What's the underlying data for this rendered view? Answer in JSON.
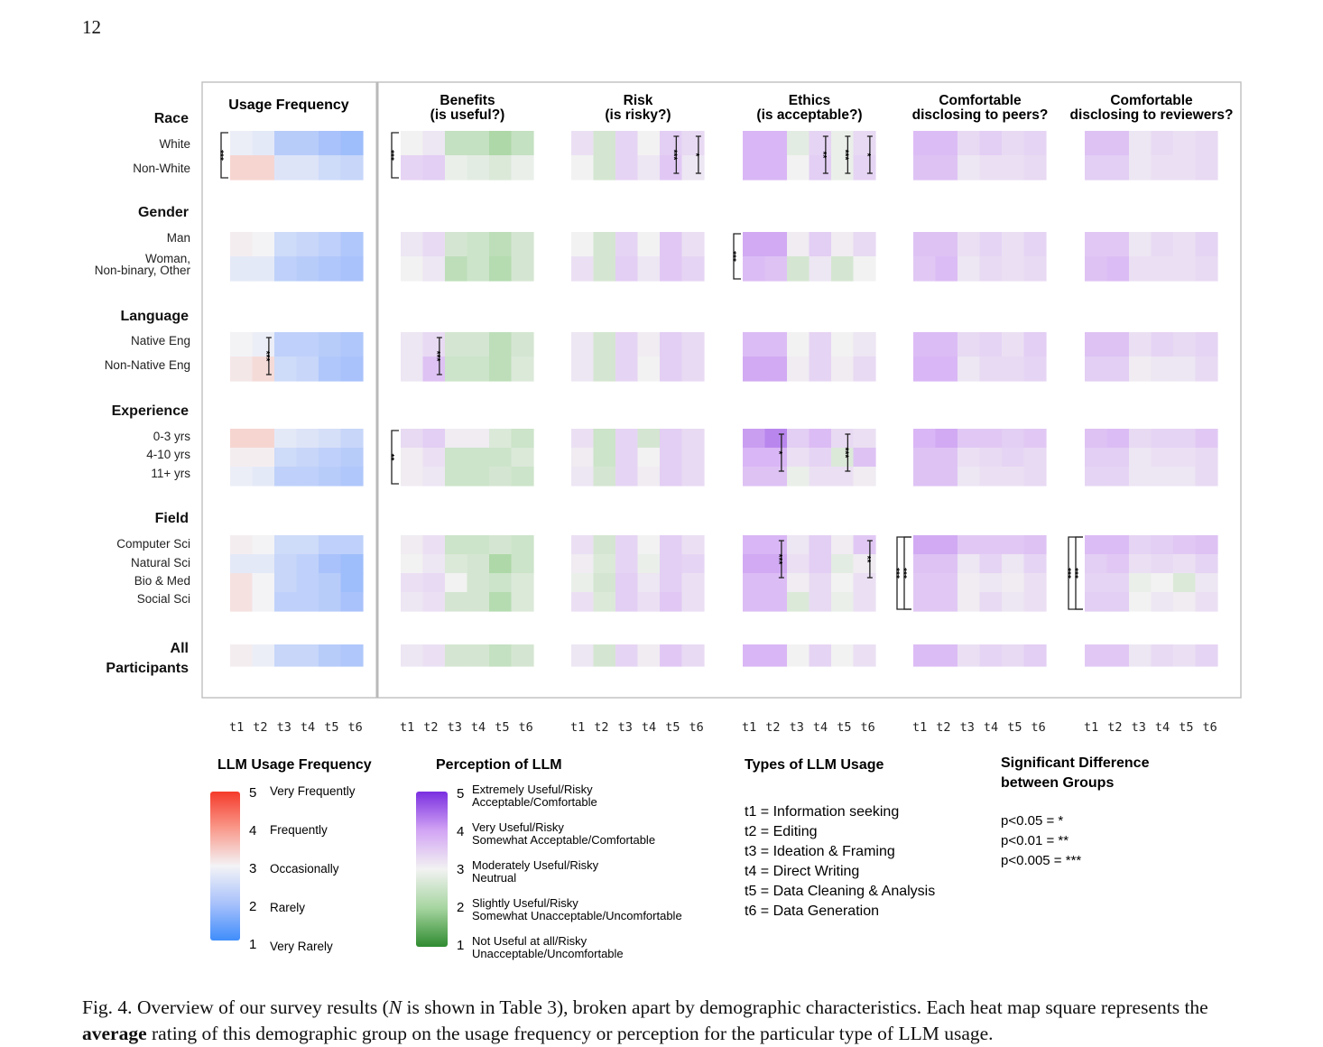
{
  "page_number": "12",
  "caption": {
    "fig_label": "Fig. 4.",
    "text_1": " Overview of our survey results (",
    "n_symbol": "N",
    "text_2": " is shown in Table 3), broken apart by demographic characteristics. Each heat map square represents the ",
    "bold_word": "average",
    "text_3": " rating of this demographic group on the usage frequency or perception for the particular type of LLM usage."
  },
  "chart_data": {
    "type": "heatmap",
    "panels": [
      {
        "id": "usage",
        "title": [
          "Usage Frequency"
        ],
        "scale": "usage"
      },
      {
        "id": "benefits",
        "title": [
          "Benefits",
          "(is useful?)"
        ],
        "scale": "perception"
      },
      {
        "id": "risk",
        "title": [
          "Risk",
          "(is risky?)"
        ],
        "scale": "perception"
      },
      {
        "id": "ethics",
        "title": [
          "Ethics",
          "(is acceptable?)"
        ],
        "scale": "perception"
      },
      {
        "id": "peers",
        "title": [
          "Comfortable",
          "disclosing to peers?"
        ],
        "scale": "perception"
      },
      {
        "id": "reviewers",
        "title": [
          "Comfortable",
          "disclosing to reviewers?"
        ],
        "scale": "perception"
      }
    ],
    "x_tick_labels": [
      "t1",
      "t2",
      "t3",
      "t4",
      "t5",
      "t6"
    ],
    "groups": [
      {
        "label": "Race",
        "rows": [
          "White",
          "Non-White"
        ]
      },
      {
        "label": "Gender",
        "rows": [
          "Man",
          "Woman,\nNon-binary, Other"
        ]
      },
      {
        "label": "Language",
        "rows": [
          "Native Eng",
          "Non-Native Eng"
        ]
      },
      {
        "label": "Experience",
        "rows": [
          "0-3 yrs",
          "4-10 yrs",
          "11+ yrs"
        ]
      },
      {
        "label": "Field",
        "rows": [
          "Computer Sci",
          "Natural Sci",
          "Bio & Med",
          "Social Sci"
        ]
      },
      {
        "label": "All\nParticipants",
        "rows": [
          ""
        ]
      }
    ],
    "values": {
      "usage": [
        [
          [
            2.9,
            2.8,
            2.2,
            2.2,
            2.0,
            1.9
          ],
          [
            3.5,
            3.5,
            2.7,
            2.7,
            2.5,
            2.4
          ]
        ],
        [
          [
            3.1,
            3.0,
            2.5,
            2.4,
            2.3,
            2.1
          ],
          [
            2.8,
            2.8,
            2.3,
            2.2,
            2.1,
            2.0
          ]
        ],
        [
          [
            3.0,
            2.9,
            2.3,
            2.3,
            2.2,
            2.1
          ],
          [
            3.2,
            3.4,
            2.5,
            2.4,
            2.1,
            2.0
          ]
        ],
        [
          [
            3.5,
            3.5,
            2.8,
            2.7,
            2.6,
            2.4
          ],
          [
            3.1,
            3.1,
            2.5,
            2.4,
            2.3,
            2.2
          ],
          [
            2.9,
            2.8,
            2.3,
            2.3,
            2.2,
            2.1
          ]
        ],
        [
          [
            3.1,
            3.0,
            2.5,
            2.5,
            2.3,
            2.3
          ],
          [
            2.8,
            2.8,
            2.4,
            2.3,
            2.0,
            1.9
          ],
          [
            3.3,
            3.0,
            2.4,
            2.3,
            2.2,
            1.9
          ],
          [
            3.3,
            3.0,
            2.3,
            2.3,
            2.2,
            2.0
          ]
        ],
        [
          [
            3.1,
            2.9,
            2.4,
            2.4,
            2.2,
            2.1
          ]
        ]
      ],
      "benefits": [
        [
          [
            3.0,
            3.2,
            2.4,
            2.4,
            2.1,
            2.4
          ],
          [
            3.5,
            3.6,
            2.9,
            2.8,
            2.7,
            2.9
          ]
        ],
        [
          [
            3.2,
            3.4,
            2.6,
            2.5,
            2.3,
            2.6
          ],
          [
            3.0,
            3.2,
            2.3,
            2.5,
            2.2,
            2.6
          ]
        ],
        [
          [
            3.2,
            3.4,
            2.6,
            2.6,
            2.3,
            2.6
          ],
          [
            3.2,
            3.8,
            2.5,
            2.5,
            2.3,
            2.7
          ]
        ],
        [
          [
            3.4,
            3.6,
            3.1,
            3.1,
            2.7,
            2.5
          ],
          [
            3.1,
            3.3,
            2.5,
            2.5,
            2.5,
            2.7
          ],
          [
            3.1,
            3.2,
            2.5,
            2.5,
            2.6,
            2.5
          ]
        ],
        [
          [
            3.1,
            3.3,
            2.5,
            2.5,
            2.6,
            2.5
          ],
          [
            3.0,
            3.2,
            2.7,
            2.6,
            2.1,
            2.5
          ],
          [
            3.3,
            3.4,
            3.0,
            2.6,
            2.5,
            2.7
          ],
          [
            3.2,
            3.3,
            2.6,
            2.6,
            2.2,
            2.7
          ]
        ],
        [
          [
            3.2,
            3.3,
            2.6,
            2.6,
            2.4,
            2.6
          ]
        ]
      ],
      "risk": [
        [
          [
            3.3,
            2.6,
            3.5,
            3.0,
            3.6,
            3.4
          ],
          [
            3.0,
            2.6,
            3.5,
            3.2,
            3.7,
            3.2
          ]
        ],
        [
          [
            3.0,
            2.6,
            3.5,
            3.0,
            3.7,
            3.3
          ],
          [
            3.3,
            2.6,
            3.6,
            3.2,
            3.7,
            3.5
          ]
        ],
        [
          [
            3.2,
            2.6,
            3.5,
            3.1,
            3.6,
            3.4
          ],
          [
            3.2,
            2.6,
            3.5,
            3.0,
            3.6,
            3.4
          ]
        ],
        [
          [
            3.3,
            2.5,
            3.5,
            2.6,
            3.6,
            3.4
          ],
          [
            3.1,
            2.5,
            3.5,
            3.0,
            3.6,
            3.4
          ],
          [
            3.2,
            2.6,
            3.5,
            3.1,
            3.6,
            3.4
          ]
        ],
        [
          [
            3.3,
            2.6,
            3.5,
            3.0,
            3.6,
            3.3
          ],
          [
            3.1,
            2.7,
            3.5,
            2.9,
            3.6,
            3.5
          ],
          [
            2.9,
            2.6,
            3.6,
            3.2,
            3.6,
            3.3
          ],
          [
            3.3,
            2.7,
            3.6,
            3.3,
            3.7,
            3.3
          ]
        ],
        [
          [
            3.2,
            2.6,
            3.5,
            3.1,
            3.7,
            3.4
          ]
        ]
      ],
      "ethics": [
        [
          [
            4.0,
            4.0,
            2.8,
            3.5,
            2.9,
            3.4
          ],
          [
            4.0,
            4.0,
            3.0,
            3.6,
            2.9,
            3.5
          ]
        ],
        [
          [
            4.1,
            4.1,
            3.1,
            3.6,
            3.1,
            3.4
          ],
          [
            3.9,
            3.8,
            2.6,
            3.2,
            2.6,
            3.0
          ]
        ],
        [
          [
            3.9,
            3.9,
            3.0,
            3.5,
            3.0,
            3.2
          ],
          [
            4.1,
            4.1,
            3.1,
            3.5,
            3.1,
            3.4
          ]
        ],
        [
          [
            4.2,
            4.4,
            3.6,
            3.9,
            3.4,
            3.3
          ],
          [
            4.0,
            4.0,
            3.3,
            3.5,
            2.7,
            3.8
          ],
          [
            3.8,
            3.8,
            2.9,
            3.3,
            3.3,
            3.1
          ]
        ],
        [
          [
            4.0,
            4.0,
            3.2,
            3.6,
            3.1,
            3.7
          ],
          [
            4.1,
            4.1,
            3.3,
            3.6,
            2.8,
            3.1
          ],
          [
            3.9,
            3.9,
            3.1,
            3.4,
            3.0,
            3.3
          ],
          [
            3.9,
            3.9,
            2.7,
            3.4,
            2.9,
            3.3
          ]
        ],
        [
          [
            4.0,
            4.0,
            3.0,
            3.5,
            3.0,
            3.3
          ]
        ]
      ],
      "peers": [
        [
          [
            3.9,
            3.9,
            3.4,
            3.6,
            3.4,
            3.5
          ],
          [
            3.8,
            3.8,
            3.2,
            3.3,
            3.3,
            3.4
          ]
        ],
        [
          [
            3.8,
            3.8,
            3.3,
            3.5,
            3.3,
            3.5
          ],
          [
            3.7,
            3.9,
            3.2,
            3.4,
            3.3,
            3.4
          ]
        ],
        [
          [
            3.9,
            3.9,
            3.4,
            3.5,
            3.3,
            3.6
          ],
          [
            4.0,
            4.0,
            3.2,
            3.4,
            3.4,
            3.5
          ]
        ],
        [
          [
            4.0,
            4.1,
            3.7,
            3.7,
            3.6,
            3.7
          ],
          [
            3.8,
            3.8,
            3.3,
            3.4,
            3.5,
            3.4
          ],
          [
            3.8,
            3.8,
            3.2,
            3.3,
            3.3,
            3.4
          ]
        ],
        [
          [
            4.1,
            4.1,
            3.7,
            3.7,
            3.7,
            3.8
          ],
          [
            3.8,
            3.8,
            3.2,
            3.5,
            3.2,
            3.5
          ],
          [
            3.7,
            3.7,
            3.1,
            3.2,
            3.1,
            3.3
          ],
          [
            3.7,
            3.7,
            3.1,
            3.4,
            3.2,
            3.3
          ]
        ],
        [
          [
            3.9,
            3.9,
            3.3,
            3.5,
            3.4,
            3.6
          ]
        ]
      ],
      "reviewers": [
        [
          [
            3.8,
            3.8,
            3.2,
            3.4,
            3.3,
            3.4
          ],
          [
            3.6,
            3.6,
            3.2,
            3.3,
            3.3,
            3.4
          ]
        ],
        [
          [
            3.7,
            3.7,
            3.2,
            3.4,
            3.3,
            3.5
          ],
          [
            3.8,
            3.9,
            3.3,
            3.3,
            3.3,
            3.4
          ]
        ],
        [
          [
            3.8,
            3.8,
            3.3,
            3.5,
            3.4,
            3.5
          ],
          [
            3.6,
            3.6,
            3.1,
            3.2,
            3.2,
            3.4
          ]
        ],
        [
          [
            3.8,
            3.9,
            3.4,
            3.5,
            3.5,
            3.7
          ],
          [
            3.6,
            3.6,
            3.2,
            3.3,
            3.3,
            3.4
          ],
          [
            3.5,
            3.5,
            3.2,
            3.2,
            3.2,
            3.4
          ]
        ],
        [
          [
            3.9,
            3.9,
            3.5,
            3.6,
            3.7,
            3.8
          ],
          [
            3.6,
            3.7,
            3.3,
            3.4,
            3.3,
            3.5
          ],
          [
            3.5,
            3.5,
            2.9,
            3.0,
            2.7,
            3.2
          ],
          [
            3.6,
            3.6,
            3.0,
            3.2,
            3.1,
            3.3
          ]
        ],
        [
          [
            3.7,
            3.7,
            3.2,
            3.4,
            3.3,
            3.5
          ]
        ]
      ]
    },
    "significance": [
      {
        "panel": "usage",
        "group": 0,
        "kind": "bracket",
        "stars": "***"
      },
      {
        "panel": "benefits",
        "group": 0,
        "kind": "bracket",
        "stars": "***"
      },
      {
        "panel": "risk",
        "group": 0,
        "kind": "bar",
        "col": 4,
        "stars": "***"
      },
      {
        "panel": "risk",
        "group": 0,
        "kind": "bar",
        "col": 5,
        "stars": "*"
      },
      {
        "panel": "ethics",
        "group": 0,
        "kind": "bar",
        "col": 3,
        "stars": "**"
      },
      {
        "panel": "ethics",
        "group": 0,
        "kind": "bar",
        "col": 4,
        "stars": "***"
      },
      {
        "panel": "ethics",
        "group": 0,
        "kind": "bar",
        "col": 5,
        "stars": "*"
      },
      {
        "panel": "ethics",
        "group": 1,
        "kind": "bracket",
        "stars": "***"
      },
      {
        "panel": "usage",
        "group": 2,
        "kind": "bar",
        "col": 1,
        "stars": "***"
      },
      {
        "panel": "benefits",
        "group": 2,
        "kind": "bar",
        "col": 1,
        "stars": "***"
      },
      {
        "panel": "benefits",
        "group": 3,
        "kind": "bracket",
        "stars": "**"
      },
      {
        "panel": "ethics",
        "group": 3,
        "kind": "bar",
        "col": 1,
        "stars": "*"
      },
      {
        "panel": "ethics",
        "group": 3,
        "kind": "bar",
        "col": 4,
        "stars": "***"
      },
      {
        "panel": "ethics",
        "group": 4,
        "kind": "bar",
        "col": 1,
        "stars": "***"
      },
      {
        "panel": "ethics",
        "group": 4,
        "kind": "bar",
        "col": 5,
        "stars": "**"
      },
      {
        "panel": "peers",
        "group": 4,
        "kind": "bracket",
        "stars": "***"
      },
      {
        "panel": "peers",
        "group": 4,
        "kind": "bracket2",
        "stars": "***"
      },
      {
        "panel": "reviewers",
        "group": 4,
        "kind": "bracket",
        "stars": "***"
      },
      {
        "panel": "reviewers",
        "group": 4,
        "kind": "bracket2",
        "stars": "***"
      }
    ],
    "legend_usage": {
      "title": "LLM Usage Frequency",
      "items": [
        {
          "n": "5",
          "label": "Very Frequently"
        },
        {
          "n": "4",
          "label": "Frequently"
        },
        {
          "n": "3",
          "label": "Occasionally"
        },
        {
          "n": "2",
          "label": "Rarely"
        },
        {
          "n": "1",
          "label": "Very Rarely"
        }
      ],
      "colors": [
        "#f53b2b",
        "#f99a8c",
        "#f3f3f6",
        "#a9c2fb",
        "#3f8dfb"
      ]
    },
    "legend_perception": {
      "title": "Perception of LLM",
      "items": [
        {
          "n": "5",
          "line1": "Extremely Useful/Risky",
          "line2": "Acceptable/Comfortable"
        },
        {
          "n": "4",
          "line1": "Very Useful/Risky",
          "line2": "Somewhat Acceptable/Comfortable"
        },
        {
          "n": "3",
          "line1": "Moderately Useful/Risky",
          "line2": "Neutrual"
        },
        {
          "n": "2",
          "line1": "Slightly Useful/Risky",
          "line2": "Somewhat Unacceptable/Uncomfortable"
        },
        {
          "n": "1",
          "line1": "Not Useful at all/Risky",
          "line2": "Unacceptable/Uncomfortable"
        }
      ],
      "colors": [
        "#7a2fe0",
        "#d2a4f4",
        "#f2f2f2",
        "#a6d5a0",
        "#2f8b30"
      ]
    },
    "legend_types": {
      "title": "Types of LLM Usage",
      "items": [
        "t1 = Information seeking",
        "t2 = Editing",
        "t3 = Ideation & Framing",
        "t4 = Direct Writing",
        "t5 = Data Cleaning & Analysis",
        "t6 = Data Generation"
      ]
    },
    "legend_significance": {
      "title_line1": "Significant Difference",
      "title_line2": "between Groups",
      "items": [
        "p<0.05 = *",
        "p<0.01 = **",
        "p<0.005 = ***"
      ]
    }
  }
}
